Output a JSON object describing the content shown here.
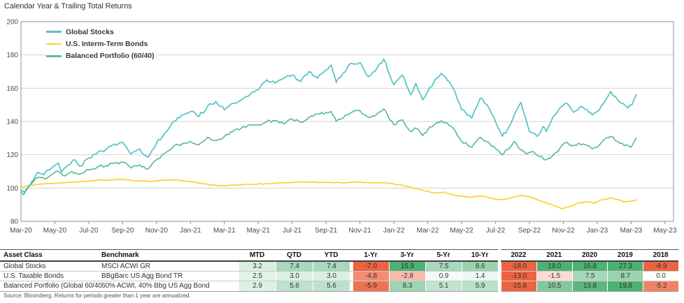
{
  "title": "Calendar Year & Trailing Total Returns",
  "chart_data": {
    "type": "line",
    "title": "Calendar Year & Trailing Total Returns",
    "ylim": [
      80,
      200
    ],
    "y_ticks": [
      200,
      180,
      160,
      140,
      120,
      100,
      80
    ],
    "x_tick_labels": [
      "Mar-20",
      "May-20",
      "Jul-20",
      "Sep-20",
      "Nov-20",
      "Jan-21",
      "Mar-21",
      "May-21",
      "Jul-21",
      "Sep-21",
      "Nov-21",
      "Jan-22",
      "Mar-22",
      "May-22",
      "Jul-22",
      "Sep-22",
      "Nov-22",
      "Jan-23",
      "Mar-23",
      "May-23"
    ],
    "x_tick_interval_months": 2,
    "grid": true,
    "legend_position": "top-left-inside",
    "series": [
      {
        "name": "Global Stocks",
        "color": "#57C1C2",
        "points": [
          [
            0,
            98
          ],
          [
            0.15,
            96
          ],
          [
            0.5,
            101
          ],
          [
            1,
            109.5
          ],
          [
            1.35,
            108
          ],
          [
            1.8,
            112
          ],
          [
            2.2,
            115
          ],
          [
            2.4,
            109.5
          ],
          [
            2.8,
            114
          ],
          [
            3.1,
            117
          ],
          [
            3.5,
            113
          ],
          [
            4,
            118
          ],
          [
            4.5,
            121
          ],
          [
            5,
            123
          ],
          [
            5.5,
            126.5
          ],
          [
            6,
            127.5
          ],
          [
            6.5,
            120.5
          ],
          [
            7,
            123.5
          ],
          [
            7.5,
            118.5
          ],
          [
            8,
            127
          ],
          [
            8.8,
            137
          ],
          [
            9,
            140
          ],
          [
            9.5,
            144
          ],
          [
            10,
            146
          ],
          [
            10.5,
            143
          ],
          [
            11,
            149
          ],
          [
            11.5,
            152
          ],
          [
            12,
            147
          ],
          [
            12.5,
            151
          ],
          [
            13,
            153
          ],
          [
            13.5,
            156
          ],
          [
            14,
            159
          ],
          [
            14.5,
            165
          ],
          [
            15,
            163
          ],
          [
            15.5,
            166
          ],
          [
            16,
            168
          ],
          [
            16.5,
            164
          ],
          [
            17,
            170
          ],
          [
            17.5,
            166
          ],
          [
            18,
            171
          ],
          [
            18.3,
            174
          ],
          [
            18.6,
            163.5
          ],
          [
            19,
            169
          ],
          [
            19.5,
            175
          ],
          [
            20,
            175.5
          ],
          [
            20.5,
            167
          ],
          [
            21,
            172
          ],
          [
            21.4,
            177.5
          ],
          [
            22,
            162
          ],
          [
            22.5,
            168
          ],
          [
            23,
            156
          ],
          [
            23.3,
            163
          ],
          [
            23.7,
            153
          ],
          [
            24,
            158
          ],
          [
            24.5,
            166
          ],
          [
            24.8,
            169
          ],
          [
            25.5,
            160
          ],
          [
            26,
            147
          ],
          [
            26.6,
            142
          ],
          [
            27.1,
            154
          ],
          [
            27.5,
            150
          ],
          [
            28.4,
            131
          ],
          [
            28.7,
            135
          ],
          [
            29,
            141
          ],
          [
            29.5,
            151.5
          ],
          [
            30,
            134
          ],
          [
            30.2,
            133
          ],
          [
            30.45,
            131
          ],
          [
            30.8,
            137
          ],
          [
            31,
            134
          ],
          [
            31.5,
            144
          ],
          [
            31.9,
            149
          ],
          [
            32.2,
            151
          ],
          [
            32.6,
            145.5
          ],
          [
            33,
            149
          ],
          [
            33.4,
            147
          ],
          [
            33.7,
            144
          ],
          [
            34,
            146
          ],
          [
            34.5,
            153
          ],
          [
            34.8,
            158
          ],
          [
            35.2,
            153
          ],
          [
            35.5,
            151
          ],
          [
            35.8,
            148
          ],
          [
            36.05,
            150
          ],
          [
            36.3,
            156
          ]
        ]
      },
      {
        "name": "U.S. Interm-Term Bonds",
        "color": "#FFCF2F",
        "points": [
          [
            0,
            100.2
          ],
          [
            0.3,
            101.3
          ],
          [
            1,
            102.3
          ],
          [
            2,
            102.8
          ],
          [
            3,
            103.4
          ],
          [
            4,
            104.2
          ],
          [
            4.7,
            104.9
          ],
          [
            5,
            104.6
          ],
          [
            5.5,
            105
          ],
          [
            6,
            105.2
          ],
          [
            6.5,
            104.6
          ],
          [
            7,
            104.3
          ],
          [
            7.5,
            104
          ],
          [
            8,
            104.4
          ],
          [
            8.5,
            104.7
          ],
          [
            9,
            104.9
          ],
          [
            9.5,
            104.5
          ],
          [
            10,
            103.9
          ],
          [
            10.5,
            103
          ],
          [
            11,
            102.4
          ],
          [
            11.5,
            101.6
          ],
          [
            12,
            101.3
          ],
          [
            13,
            102
          ],
          [
            14,
            102.4
          ],
          [
            15,
            103
          ],
          [
            16,
            103.5
          ],
          [
            17,
            103.6
          ],
          [
            18,
            103.4
          ],
          [
            19,
            103.2
          ],
          [
            20,
            103.5
          ],
          [
            21,
            103
          ],
          [
            21.5,
            103.2
          ],
          [
            22,
            102.5
          ],
          [
            22.5,
            101.6
          ],
          [
            23,
            100.4
          ],
          [
            24,
            98.1
          ],
          [
            24.5,
            96.9
          ],
          [
            25,
            97.4
          ],
          [
            25.5,
            95.9
          ],
          [
            26,
            95.1
          ],
          [
            26.5,
            94.4
          ],
          [
            27,
            95.3
          ],
          [
            27.5,
            94.5
          ],
          [
            28,
            93.3
          ],
          [
            28.5,
            93
          ],
          [
            29,
            94.3
          ],
          [
            29.5,
            95.5
          ],
          [
            30,
            94.9
          ],
          [
            30.5,
            92.9
          ],
          [
            31,
            91.1
          ],
          [
            31.5,
            89.4
          ],
          [
            31.9,
            87.6
          ],
          [
            32.3,
            88.7
          ],
          [
            32.8,
            90.6
          ],
          [
            33,
            91.3
          ],
          [
            33.5,
            91.7
          ],
          [
            33.8,
            90.9
          ],
          [
            34.3,
            93
          ],
          [
            34.8,
            94
          ],
          [
            35.2,
            93
          ],
          [
            35.6,
            91.6
          ],
          [
            36,
            92
          ],
          [
            36.3,
            92.8
          ]
        ]
      },
      {
        "name": "Balanced Portfolio (60/40)",
        "color": "#60BF8A",
        "points": [
          [
            0,
            99
          ],
          [
            0.2,
            97.5
          ],
          [
            0.5,
            101.5
          ],
          [
            1,
            106.5
          ],
          [
            1.4,
            105.5
          ],
          [
            1.8,
            108
          ],
          [
            2.2,
            110
          ],
          [
            2.5,
            107.5
          ],
          [
            3,
            110
          ],
          [
            3.5,
            108.5
          ],
          [
            4,
            111
          ],
          [
            4.5,
            112.5
          ],
          [
            5,
            113.5
          ],
          [
            5.5,
            115
          ],
          [
            6,
            115.5
          ],
          [
            6.5,
            112
          ],
          [
            7,
            114
          ],
          [
            7.5,
            111.5
          ],
          [
            8,
            117
          ],
          [
            8.8,
            123
          ],
          [
            9,
            125
          ],
          [
            9.5,
            126.5
          ],
          [
            10,
            128
          ],
          [
            10.5,
            126
          ],
          [
            11,
            130.5
          ],
          [
            11.5,
            128.5
          ],
          [
            12,
            131
          ],
          [
            12.5,
            134
          ],
          [
            13,
            136
          ],
          [
            13.5,
            138
          ],
          [
            14,
            138
          ],
          [
            14.5,
            140
          ],
          [
            15,
            140.5
          ],
          [
            15.5,
            138.5
          ],
          [
            16,
            141.5
          ],
          [
            16.5,
            139.5
          ],
          [
            17,
            142.5
          ],
          [
            17.5,
            144.5
          ],
          [
            18,
            145.5
          ],
          [
            18.3,
            146
          ],
          [
            18.6,
            140
          ],
          [
            19,
            142
          ],
          [
            19.5,
            145.5
          ],
          [
            20,
            146.5
          ],
          [
            20.5,
            142.5
          ],
          [
            21,
            144.5
          ],
          [
            21.4,
            147.5
          ],
          [
            22,
            138
          ],
          [
            22.5,
            141
          ],
          [
            23,
            134
          ],
          [
            23.3,
            136
          ],
          [
            23.7,
            131.5
          ],
          [
            24,
            135
          ],
          [
            24.5,
            139
          ],
          [
            24.8,
            140.5
          ],
          [
            25.5,
            136
          ],
          [
            26,
            128
          ],
          [
            26.6,
            124.5
          ],
          [
            27.1,
            130.5
          ],
          [
            27.5,
            128
          ],
          [
            28.4,
            120
          ],
          [
            28.7,
            123
          ],
          [
            29.1,
            128
          ],
          [
            29.5,
            123
          ],
          [
            29.8,
            120.5
          ],
          [
            30.2,
            122
          ],
          [
            30.6,
            119
          ],
          [
            31,
            117
          ],
          [
            31.3,
            118.5
          ],
          [
            31.8,
            124
          ],
          [
            32.2,
            127.5
          ],
          [
            32.5,
            125.3
          ],
          [
            32.9,
            127
          ],
          [
            33.3,
            126
          ],
          [
            33.7,
            123.5
          ],
          [
            34,
            124.5
          ],
          [
            34.3,
            128
          ],
          [
            34.8,
            131
          ],
          [
            35.2,
            128
          ],
          [
            35.6,
            125.5
          ],
          [
            36,
            124.5
          ],
          [
            36.3,
            130
          ]
        ]
      }
    ]
  },
  "table": {
    "headers": {
      "asset_class": "Asset Class",
      "benchmark": "Benchmark",
      "periods": [
        "MTD",
        "QTD",
        "YTD",
        "1-Yr",
        "3-Yr",
        "5-Yr",
        "10-Yr"
      ],
      "years": [
        "2022",
        "2021",
        "2020",
        "2019",
        "2018"
      ]
    },
    "rows": [
      {
        "asset_class": "Global Stocks",
        "benchmark": "MSCI ACWI GR",
        "periods": [
          "3.2",
          "7.4",
          "7.4",
          "-7.0",
          "15.9",
          "7.5",
          "8.6"
        ],
        "years": [
          "-18.0",
          "19.0",
          "16.8",
          "27.3",
          "-8.9"
        ]
      },
      {
        "asset_class": "U.S. Taxable Bonds",
        "benchmark": "BBgBarc US Agg Bond TR",
        "periods": [
          "2.5",
          "3.0",
          "3.0",
          "-4.8",
          "-2.8",
          "0.9",
          "1.4"
        ],
        "years": [
          "-13.0",
          "-1.5",
          "7.5",
          "8.7",
          "0.0"
        ]
      },
      {
        "asset_class": "Balanced Portfolio (Global 60/40)",
        "benchmark": "60% ACWI, 40% Bbg US Agg Bond",
        "periods": [
          "2.9",
          "5.6",
          "5.6",
          "-5.9",
          "8.3",
          "5.1",
          "5.9"
        ],
        "years": [
          "-15.8",
          "10.5",
          "13.8",
          "19.8",
          "-5.2"
        ]
      }
    ]
  },
  "heatmap": {
    "positive_full": "#4DB173",
    "negative_full": "#EC6440",
    "positive_max": 15,
    "negative_max": 6.5
  },
  "footnote": "Source: Bloomberg. Returns for periods greater than 1 year are annualized."
}
